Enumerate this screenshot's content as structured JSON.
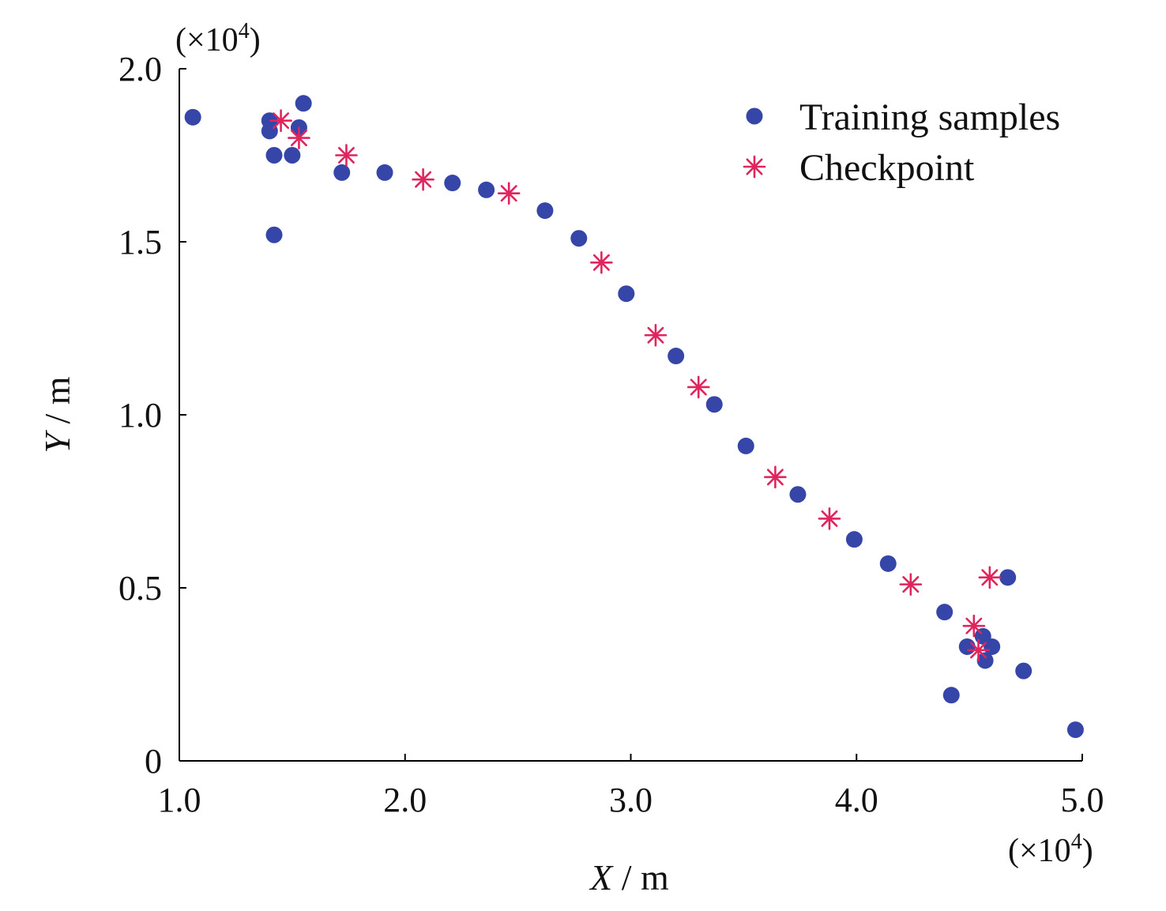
{
  "chart_data": {
    "type": "scatter",
    "title": "",
    "xlabel_var": "X",
    "xlabel_unit": " / m",
    "ylabel_var": "Y",
    "ylabel_unit": " / m",
    "x_scale_prefix": "(×10",
    "x_scale_exp": "4",
    "x_scale_suffix": ")",
    "y_scale_prefix": "(×10",
    "y_scale_exp": "4",
    "y_scale_suffix": ")",
    "xlim": [
      1.0,
      5.0
    ],
    "ylim": [
      0,
      2.0
    ],
    "x_ticks": [
      1.0,
      2.0,
      3.0,
      4.0,
      5.0
    ],
    "x_tick_labels": [
      "1.0",
      "2.0",
      "3.0",
      "4.0",
      "5.0"
    ],
    "y_ticks": [
      0,
      0.5,
      1.0,
      1.5,
      2.0
    ],
    "y_tick_labels": [
      "0",
      "0.5",
      "1.0",
      "1.5",
      "2.0"
    ],
    "grid": false,
    "legend_position": "top-right",
    "series": [
      {
        "name": "Training samples",
        "marker": "circle",
        "color": "#3546a8",
        "points": [
          [
            1.06,
            1.86
          ],
          [
            1.4,
            1.85
          ],
          [
            1.4,
            1.82
          ],
          [
            1.42,
            1.75
          ],
          [
            1.42,
            1.52
          ],
          [
            1.5,
            1.75
          ],
          [
            1.53,
            1.83
          ],
          [
            1.55,
            1.9
          ],
          [
            1.72,
            1.7
          ],
          [
            1.91,
            1.7
          ],
          [
            2.21,
            1.67
          ],
          [
            2.36,
            1.65
          ],
          [
            2.62,
            1.59
          ],
          [
            2.77,
            1.51
          ],
          [
            2.98,
            1.35
          ],
          [
            3.2,
            1.17
          ],
          [
            3.37,
            1.03
          ],
          [
            3.51,
            0.91
          ],
          [
            3.74,
            0.77
          ],
          [
            3.99,
            0.64
          ],
          [
            4.14,
            0.57
          ],
          [
            4.39,
            0.43
          ],
          [
            4.42,
            0.19
          ],
          [
            4.49,
            0.33
          ],
          [
            4.56,
            0.36
          ],
          [
            4.57,
            0.29
          ],
          [
            4.6,
            0.33
          ],
          [
            4.67,
            0.53
          ],
          [
            4.74,
            0.26
          ],
          [
            4.97,
            0.09
          ]
        ]
      },
      {
        "name": "Checkpoint",
        "marker": "asterisk",
        "color": "#e0245e",
        "points": [
          [
            1.45,
            1.85
          ],
          [
            1.53,
            1.8
          ],
          [
            1.74,
            1.75
          ],
          [
            2.08,
            1.68
          ],
          [
            2.46,
            1.64
          ],
          [
            2.87,
            1.44
          ],
          [
            3.11,
            1.23
          ],
          [
            3.3,
            1.08
          ],
          [
            3.64,
            0.82
          ],
          [
            3.88,
            0.7
          ],
          [
            4.24,
            0.51
          ],
          [
            4.52,
            0.39
          ],
          [
            4.54,
            0.32
          ],
          [
            4.59,
            0.53
          ]
        ]
      }
    ]
  }
}
